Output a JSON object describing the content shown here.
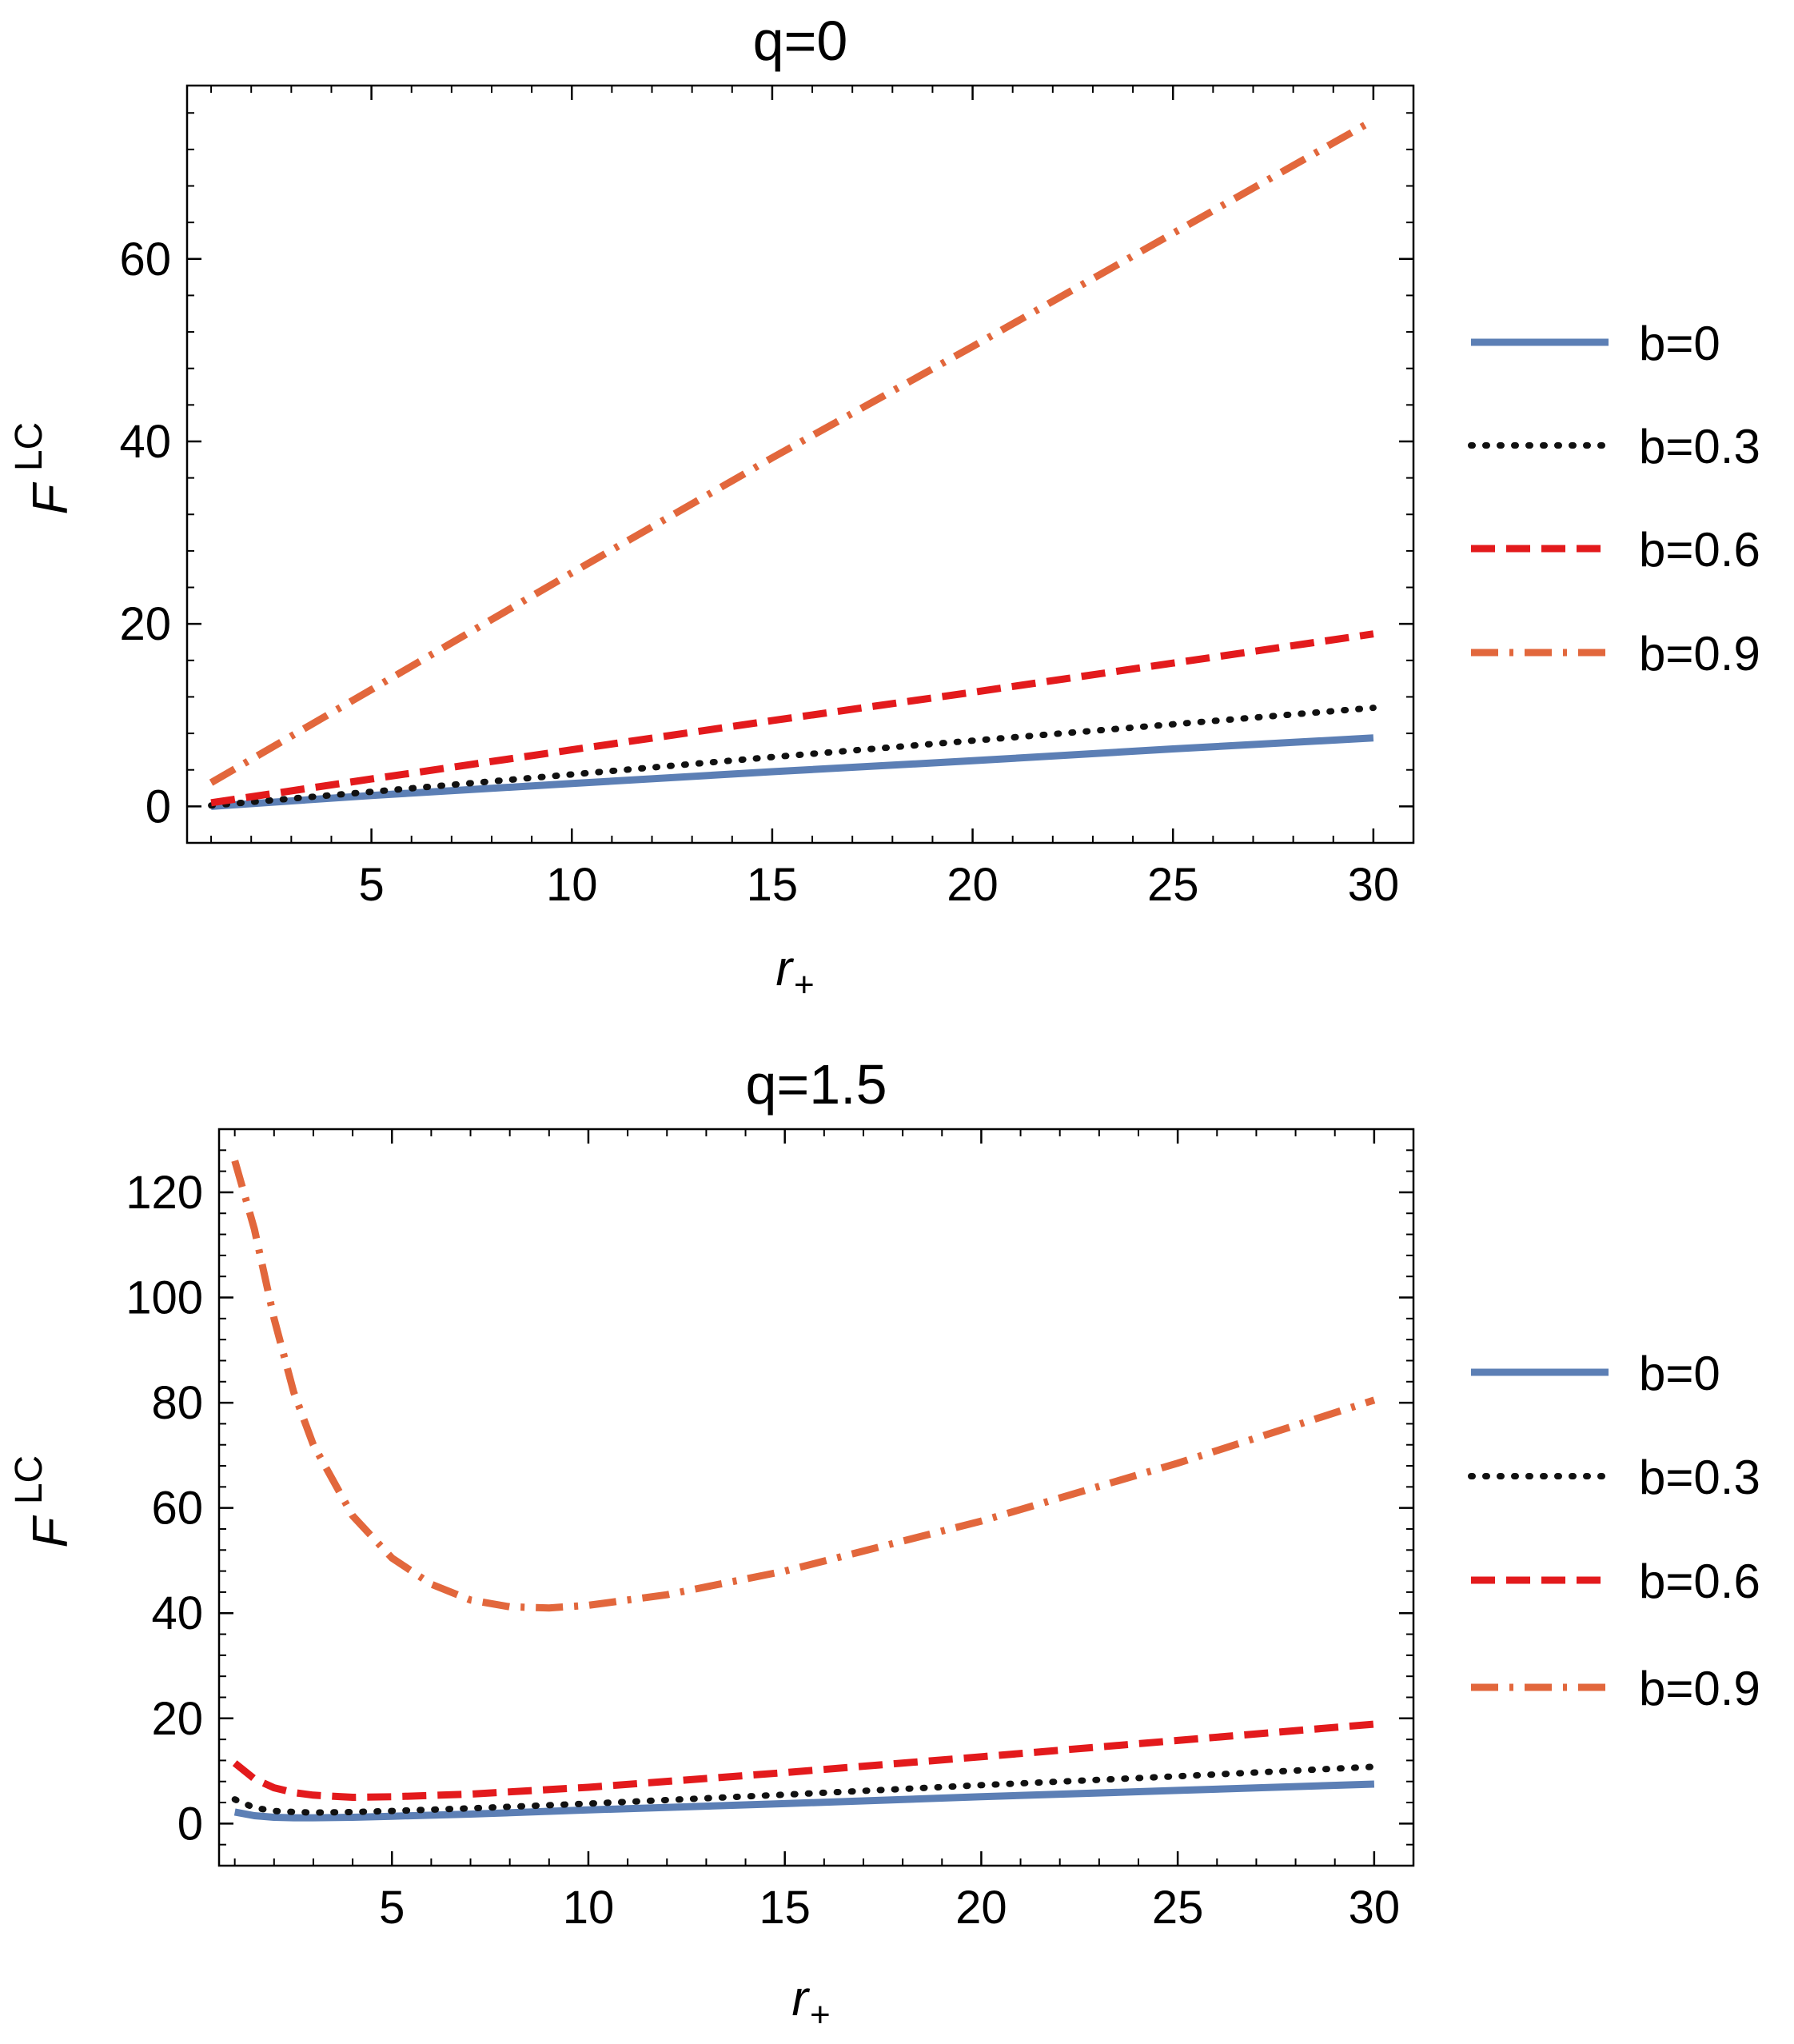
{
  "chart_data": [
    {
      "type": "line",
      "title": "q=0",
      "xlabel": "r",
      "xlabel_sub": "+",
      "ylabel": "F",
      "ylabel_sup": "LC",
      "xlim": [
        0.4,
        31
      ],
      "ylim": [
        -4,
        79
      ],
      "xticks": [
        5,
        10,
        15,
        20,
        25,
        30
      ],
      "yticks": [
        0,
        20,
        40,
        60
      ],
      "legend_position": "right",
      "series": [
        {
          "name": "b=0",
          "color": "#5c7fb5",
          "dash": "solid",
          "x": [
            1,
            5,
            10,
            15,
            20,
            25,
            30
          ],
          "y": [
            0.0,
            1.2,
            2.5,
            3.8,
            5.0,
            6.3,
            7.5
          ]
        },
        {
          "name": "b=0.3",
          "color": "#111111",
          "dash": "dotted",
          "x": [
            1,
            5,
            10,
            15,
            20,
            25,
            30
          ],
          "y": [
            0.1,
            1.6,
            3.5,
            5.4,
            7.2,
            9.0,
            10.8
          ]
        },
        {
          "name": "b=0.6",
          "color": "#e31a1c",
          "dash": "dashed",
          "x": [
            1,
            5,
            10,
            15,
            20,
            25,
            30
          ],
          "y": [
            0.4,
            3.0,
            6.2,
            9.4,
            12.5,
            15.7,
            18.9
          ]
        },
        {
          "name": "b=0.9",
          "color": "#e2673c",
          "dash": "dashdot",
          "x": [
            1,
            5,
            10,
            15,
            20,
            25,
            30
          ],
          "y": [
            2.6,
            12.8,
            25.6,
            38.2,
            50.4,
            62.8,
            75.2
          ]
        }
      ]
    },
    {
      "type": "line",
      "title": "q=1.5",
      "xlabel": "r",
      "xlabel_sub": "+",
      "ylabel": "F",
      "ylabel_sup": "LC",
      "xlim": [
        0.6,
        31
      ],
      "ylim": [
        -8,
        132
      ],
      "xticks": [
        5,
        10,
        15,
        20,
        25,
        30
      ],
      "yticks": [
        0,
        20,
        40,
        60,
        80,
        100,
        120
      ],
      "legend_position": "right",
      "series": [
        {
          "name": "b=0",
          "color": "#5c7fb5",
          "dash": "solid",
          "x": [
            1,
            1.5,
            2,
            2.5,
            3,
            4,
            5,
            7,
            10,
            15,
            20,
            25,
            30
          ],
          "y": [
            2.2,
            1.5,
            1.2,
            1.1,
            1.1,
            1.2,
            1.4,
            1.8,
            2.6,
            3.8,
            5.1,
            6.3,
            7.5
          ]
        },
        {
          "name": "b=0.3",
          "color": "#111111",
          "dash": "dotted",
          "x": [
            1,
            1.5,
            2,
            2.5,
            3,
            4,
            5,
            7,
            10,
            15,
            20,
            25,
            30
          ],
          "y": [
            4.6,
            3.0,
            2.4,
            2.2,
            2.1,
            2.2,
            2.4,
            2.9,
            3.8,
            5.5,
            7.3,
            9.0,
            10.8
          ]
        },
        {
          "name": "b=0.6",
          "color": "#e31a1c",
          "dash": "dashed",
          "x": [
            1,
            1.5,
            2,
            2.5,
            3,
            4,
            5,
            7,
            10,
            15,
            20,
            25,
            30
          ],
          "y": [
            11.5,
            8.5,
            6.8,
            5.9,
            5.4,
            5.0,
            5.1,
            5.6,
            6.9,
            9.7,
            12.7,
            15.8,
            18.9
          ]
        },
        {
          "name": "b=0.9",
          "color": "#e2673c",
          "dash": "dashdot",
          "x": [
            1,
            1.5,
            2,
            2.5,
            3,
            4,
            5,
            6,
            7,
            8,
            9,
            10,
            12,
            15,
            20,
            25,
            30
          ],
          "y": [
            126,
            113,
            96,
            82,
            72,
            58.5,
            50.5,
            45.5,
            42.5,
            41.2,
            41.0,
            41.5,
            43.5,
            48,
            57.5,
            68.5,
            80.5
          ]
        }
      ]
    }
  ]
}
